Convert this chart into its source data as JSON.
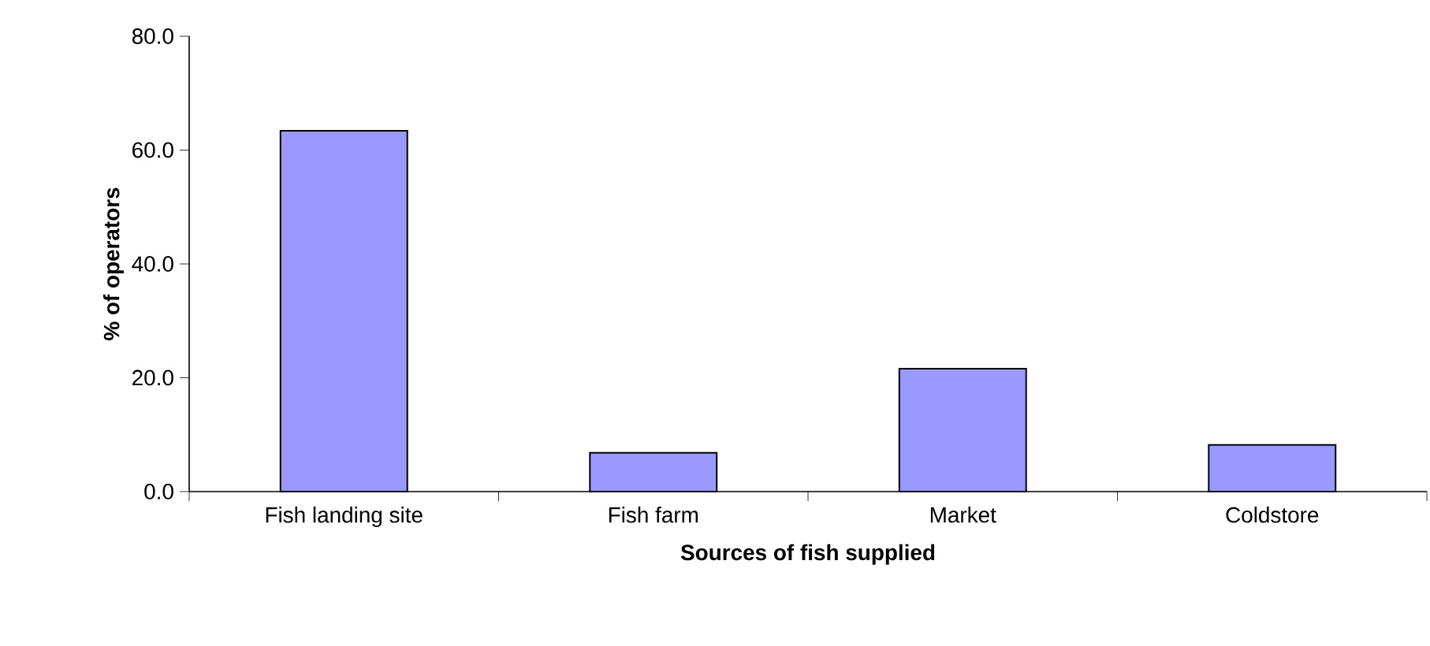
{
  "chart_data": {
    "type": "bar",
    "categories": [
      "Fish landing site",
      "Fish farm",
      "Market",
      "Coldstore"
    ],
    "values": [
      63.4,
      6.8,
      21.6,
      8.2
    ],
    "color": "#9999ff",
    "xlabel": "Sources of fish supplied",
    "ylabel": "% of operators",
    "ylim": [
      0,
      80
    ],
    "yticks": [
      {
        "value": 0,
        "label": "0.0"
      },
      {
        "value": 20,
        "label": "20.0"
      },
      {
        "value": 40,
        "label": "40.0"
      },
      {
        "value": 60,
        "label": "60.0"
      },
      {
        "value": 80,
        "label": "80.0"
      }
    ],
    "grid": false
  }
}
